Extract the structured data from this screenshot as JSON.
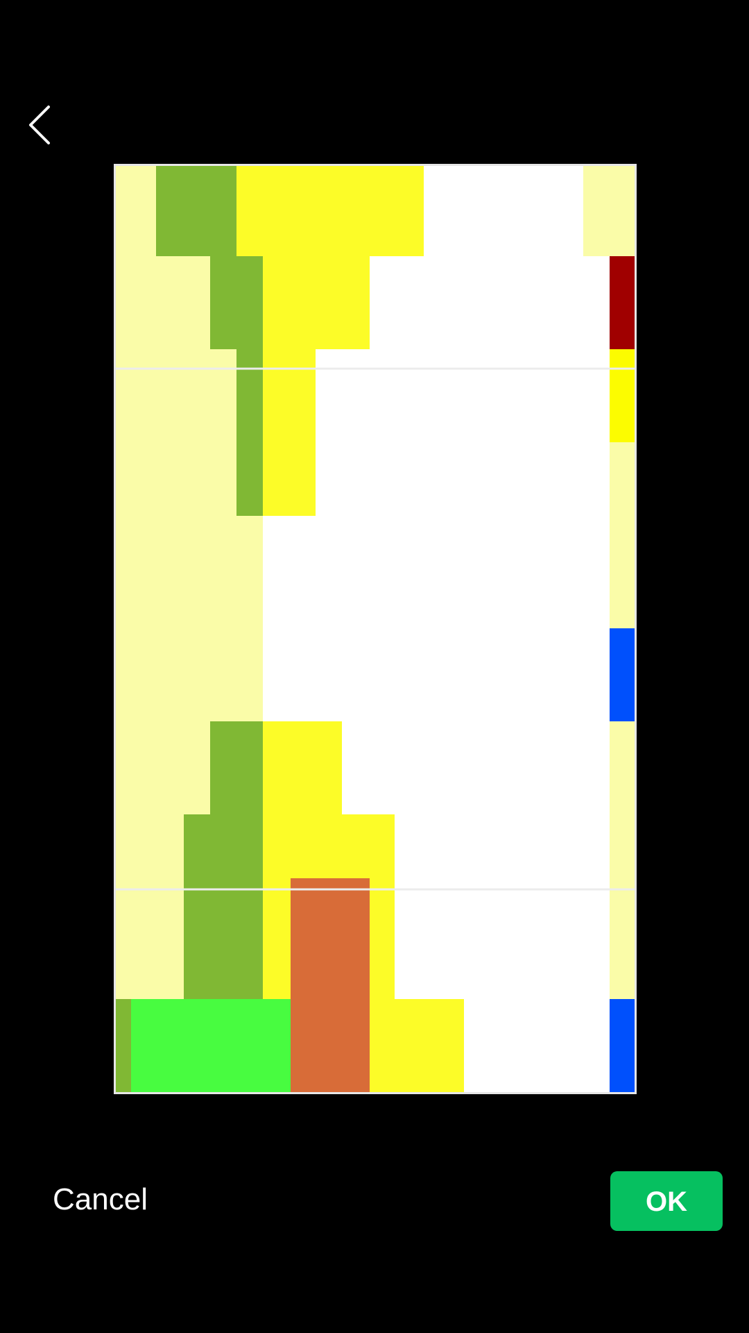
{
  "header": {
    "back_icon": "chevron-left-icon"
  },
  "preview": {
    "content_description_icon": "color-block-image"
  },
  "footer": {
    "cancel_label": "Cancel",
    "ok_label": "OK"
  },
  "colors": {
    "background": "#000000",
    "ok_button": "#06c060",
    "palette_light_yellow": "#fafca8",
    "palette_olive_green": "#80b834",
    "palette_yellow": "#fcfc28",
    "palette_white": "#ffffff",
    "palette_dark_red": "#a00000",
    "palette_bright_yellow": "#fcfc00",
    "palette_blue": "#0050fc",
    "palette_bright_green": "#48fc40",
    "palette_orange": "#d86c38"
  }
}
